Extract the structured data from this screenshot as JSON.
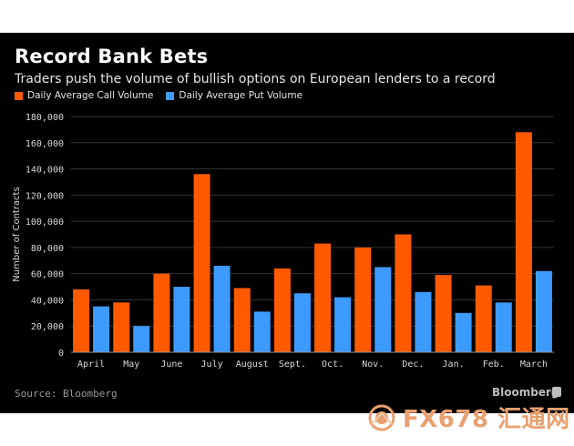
{
  "header": {
    "title": "Record Bank Bets",
    "subtitle": "Traders push the volume of bullish options on European lenders to a record"
  },
  "legend": {
    "call_label": "Daily Average Call Volume",
    "put_label": "Daily Average Put Volume"
  },
  "footer": {
    "source": "Source: Bloomberg",
    "brand": "Bloomberg"
  },
  "watermark": {
    "text": "FX678 汇通网"
  },
  "colors": {
    "call": "#ff5a00",
    "put": "#3d9bff",
    "background": "#000000",
    "text": "#e6e6e6",
    "grid": "#333333"
  },
  "chart_data": {
    "type": "bar",
    "title": "Record Bank Bets",
    "subtitle": "Traders push the volume of bullish options on European lenders to a record",
    "xlabel": "",
    "ylabel": "Number of Contracts",
    "ylim": [
      0,
      180000
    ],
    "yticks": [
      0,
      20000,
      40000,
      60000,
      80000,
      100000,
      120000,
      140000,
      160000,
      180000
    ],
    "ytick_labels": [
      "0",
      "20,000",
      "40,000",
      "60,000",
      "80,000",
      "100,000",
      "120,000",
      "140,000",
      "160,000",
      "180,000"
    ],
    "categories": [
      "April",
      "May",
      "June",
      "July",
      "August",
      "Sept.",
      "Oct.",
      "Nov.",
      "Dec.",
      "Jan.",
      "Feb.",
      "March"
    ],
    "series": [
      {
        "name": "Daily Average Call Volume",
        "values": [
          48000,
          38000,
          60000,
          136000,
          49000,
          64000,
          83000,
          80000,
          90000,
          59000,
          51000,
          168000
        ]
      },
      {
        "name": "Daily Average Put Volume",
        "values": [
          35000,
          20000,
          50000,
          66000,
          31000,
          45000,
          42000,
          65000,
          46000,
          30000,
          38000,
          62000
        ]
      }
    ],
    "grid": true,
    "legend_position": "top-left"
  }
}
